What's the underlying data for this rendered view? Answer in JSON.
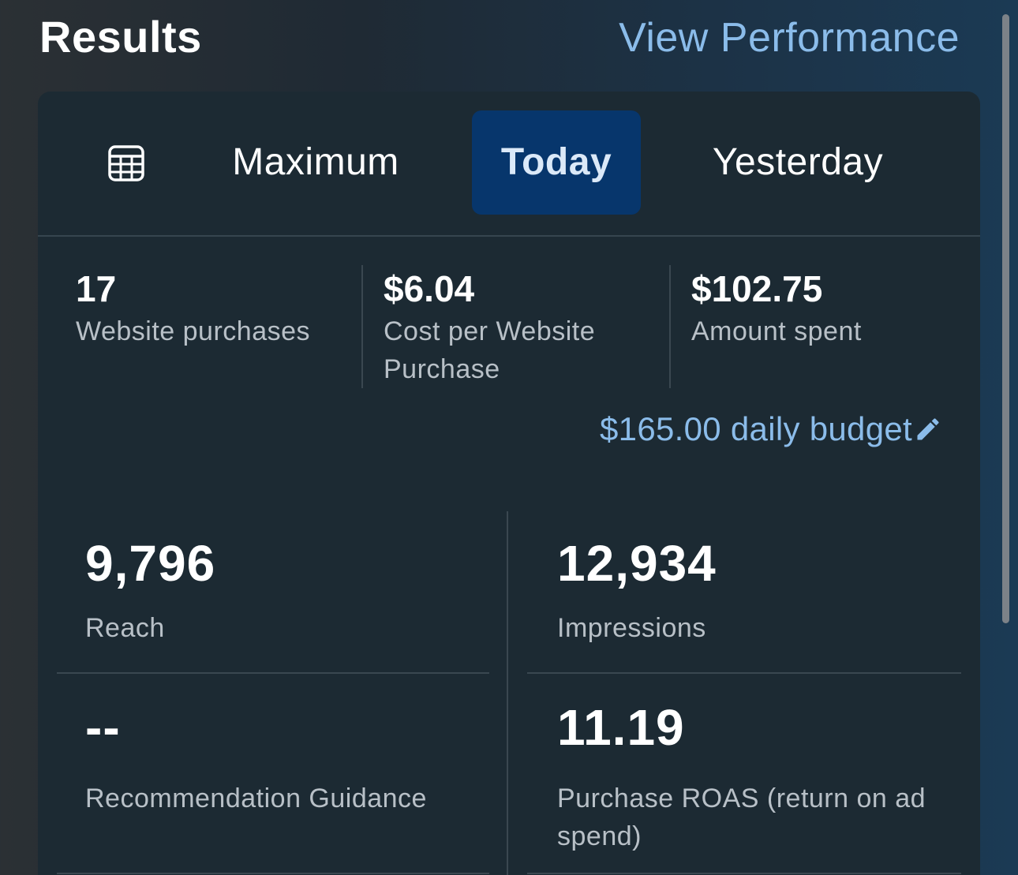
{
  "header": {
    "title": "Results",
    "view_performance": "View Performance"
  },
  "tabs": {
    "calendar_icon": "calendar-grid-icon",
    "items": [
      {
        "label": "Maximum",
        "selected": false
      },
      {
        "label": "Today",
        "selected": true
      },
      {
        "label": "Yesterday",
        "selected": false
      }
    ]
  },
  "summary": [
    {
      "value": "17",
      "label": "Website purchases"
    },
    {
      "value": "$6.04",
      "label": "Cost per Website Purchase"
    },
    {
      "value": "$102.75",
      "label": "Amount spent"
    }
  ],
  "budget": {
    "text": "$165.00 daily budget",
    "icon": "pencil-icon"
  },
  "metrics": [
    {
      "value": "9,796",
      "label": "Reach"
    },
    {
      "value": "12,934",
      "label": "Impressions"
    },
    {
      "value": "--",
      "label": "Recommendation Guidance"
    },
    {
      "value": "11.19",
      "label": "Purchase ROAS (return on ad spend)"
    }
  ],
  "colors": {
    "accent_link": "#8bbcea",
    "selected_tab": "#07366c",
    "card_background": "#1c2a33"
  }
}
